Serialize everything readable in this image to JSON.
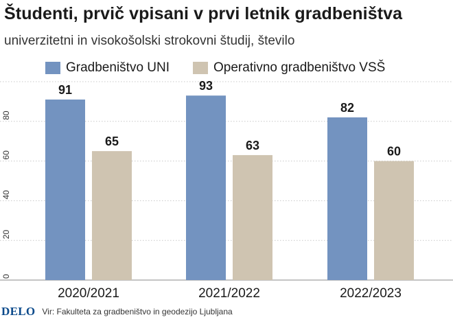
{
  "title": "Študenti, prvič vpisani v prvi letnik gradbeništva",
  "subtitle": "univerzitetni in visokošolski strokovni študij, število",
  "logo": "DELO",
  "source": "Vir: Fakulteta za gradbeništvo in geodezijo Ljubljana",
  "colors": {
    "uni": "#7393c0",
    "vss": "#cfc4b1"
  },
  "chart_data": {
    "type": "bar",
    "title": "Študenti, prvič vpisani v prvi letnik gradbeništva",
    "subtitle": "univerzitetni in visokošolski strokovni študij, število",
    "categories": [
      "2020/2021",
      "2021/2022",
      "2022/2023"
    ],
    "series": [
      {
        "name": "Gradbeništvo UNI",
        "values": [
          91,
          93,
          82
        ]
      },
      {
        "name": "Operativno gradbeništvo VSŠ",
        "values": [
          65,
          63,
          60
        ]
      }
    ],
    "yticks": [
      "0",
      "20",
      "40",
      "60",
      "80"
    ],
    "ylim": [
      0,
      100
    ],
    "grid": true,
    "legend_position": "top"
  }
}
